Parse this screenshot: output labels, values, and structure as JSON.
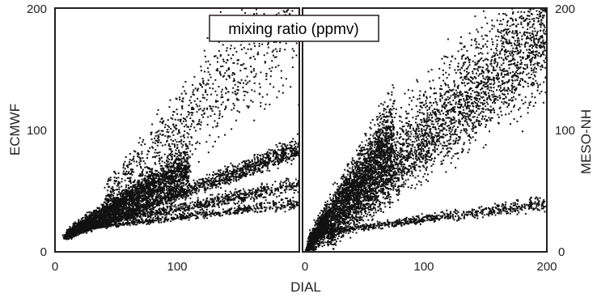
{
  "title": "mixing ratio (ppmv)",
  "xlabel": "DIAL",
  "colors": {
    "points": "#111111",
    "frame": "#231f20",
    "background": "#ffffff"
  },
  "chart_data": [
    {
      "type": "scatter",
      "ylabel": "ECMWF",
      "xlim": [
        0,
        200
      ],
      "ylim": [
        0,
        200
      ],
      "xticks": [
        "0",
        "100"
      ],
      "yticks": [
        "0",
        "100",
        "200"
      ],
      "y_axis_side": "left",
      "point_count_shown": "dense",
      "bands": [
        {
          "x0": 8,
          "x1": 200,
          "y0": 12,
          "y1": 85,
          "n": 1600,
          "spread": 6
        },
        {
          "x0": 10,
          "x1": 110,
          "y0": 15,
          "y1": 70,
          "n": 2600,
          "spread": 12
        },
        {
          "x0": 20,
          "x1": 200,
          "y0": 20,
          "y1": 55,
          "n": 900,
          "spread": 5
        },
        {
          "x0": 15,
          "x1": 200,
          "y0": 18,
          "y1": 40,
          "n": 600,
          "spread": 3
        },
        {
          "x0": 40,
          "x1": 200,
          "y0": 40,
          "y1": 200,
          "n": 1000,
          "spread": 40
        }
      ]
    },
    {
      "type": "scatter",
      "ylabel": "MESO-NH",
      "xlim": [
        0,
        200
      ],
      "ylim": [
        0,
        200
      ],
      "xticks": [
        "0",
        "100",
        "200"
      ],
      "yticks": [
        "0",
        "100",
        "200"
      ],
      "y_axis_side": "right",
      "point_count_shown": "dense",
      "bands": [
        {
          "x0": 5,
          "x1": 75,
          "y0": 5,
          "y1": 95,
          "n": 2400,
          "spread": 25
        },
        {
          "x0": 20,
          "x1": 200,
          "y0": 10,
          "y1": 180,
          "n": 1800,
          "spread": 30
        },
        {
          "x0": 10,
          "x1": 200,
          "y0": 15,
          "y1": 40,
          "n": 700,
          "spread": 4
        },
        {
          "x0": 30,
          "x1": 200,
          "y0": 40,
          "y1": 200,
          "n": 1400,
          "spread": 45
        },
        {
          "x0": 3,
          "x1": 20,
          "y0": 0,
          "y1": 30,
          "n": 500,
          "spread": 6
        }
      ]
    }
  ]
}
